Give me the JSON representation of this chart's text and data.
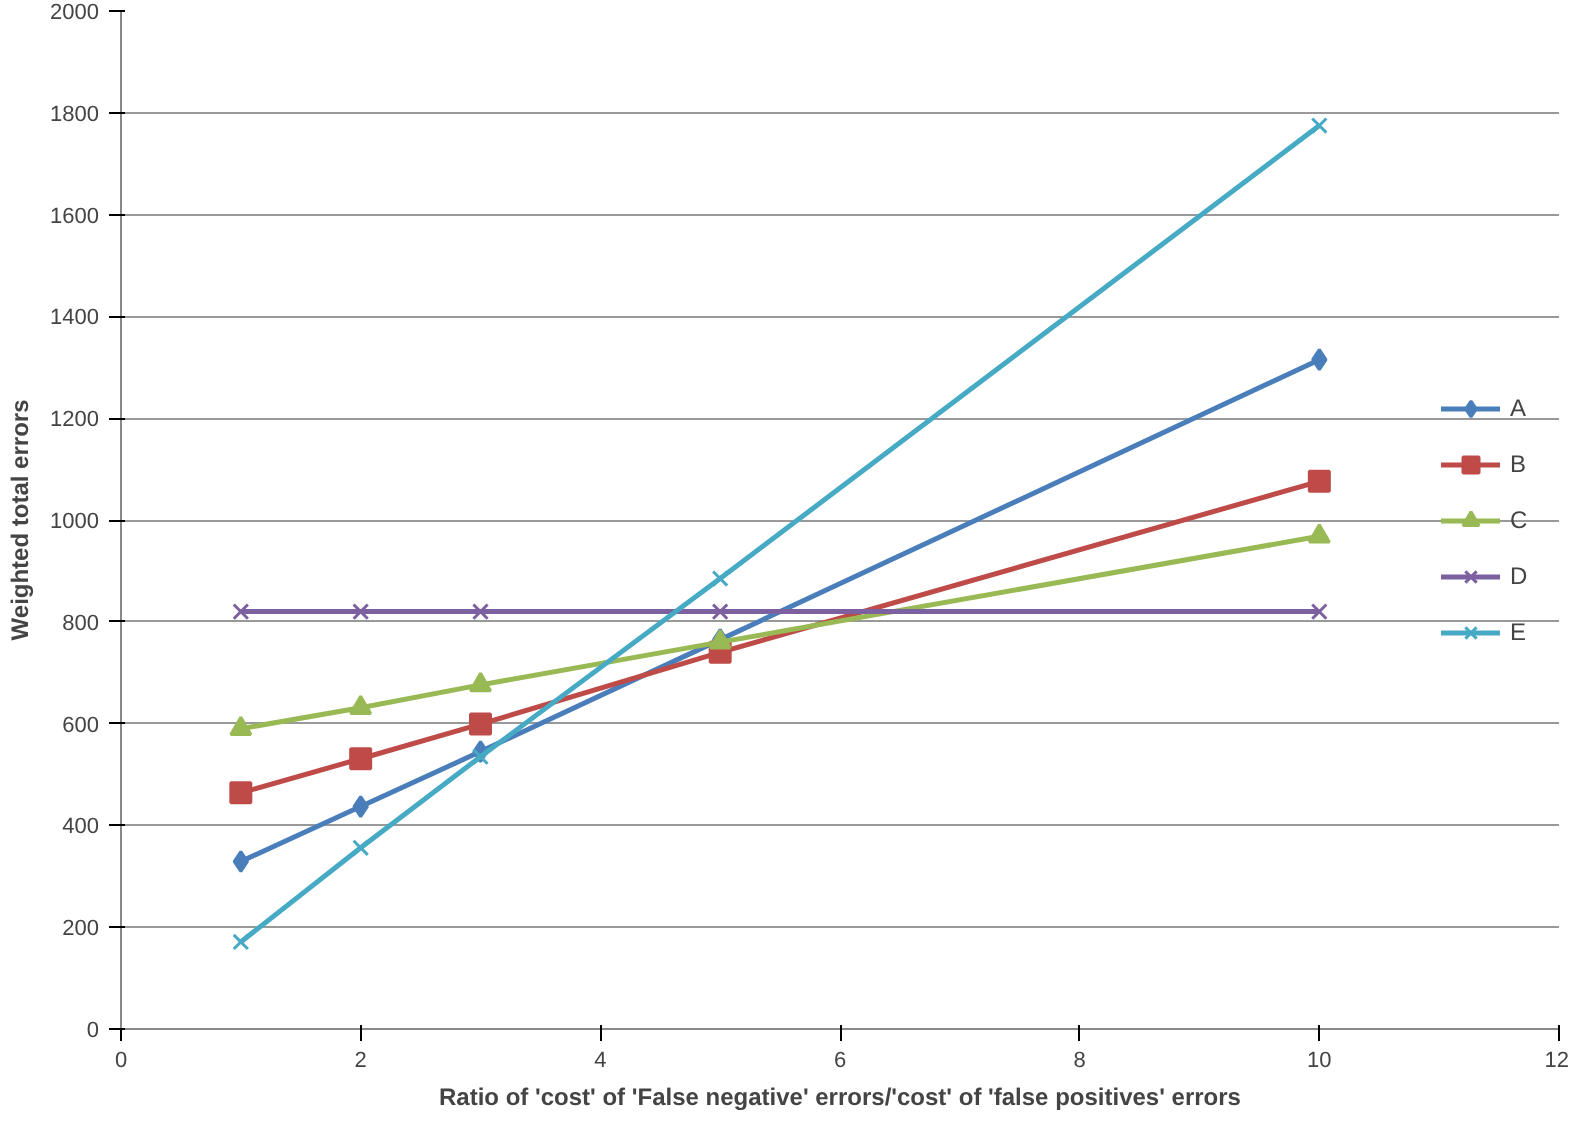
{
  "chart_data": {
    "type": "line",
    "xlabel": "Ratio of 'cost' of 'False negative' errors/'cost' of 'false positives' errors",
    "ylabel": "Weighted total errors",
    "x": [
      1,
      2,
      3,
      5,
      10
    ],
    "series": [
      {
        "name": "A",
        "color": "#4a7ebb",
        "marker": "diamond",
        "values": [
          329,
          437,
          545,
          765,
          1315
        ]
      },
      {
        "name": "B",
        "color": "#be4b48",
        "marker": "square",
        "values": [
          464,
          531,
          599,
          740,
          1076
        ]
      },
      {
        "name": "C",
        "color": "#98b954",
        "marker": "triangle",
        "values": [
          590,
          631,
          676,
          760,
          968
        ]
      },
      {
        "name": "D",
        "color": "#7d60a0",
        "marker": "cross",
        "values": [
          820,
          820,
          820,
          820,
          820
        ]
      },
      {
        "name": "E",
        "color": "#46aac5",
        "marker": "cross",
        "values": [
          171,
          356,
          535,
          885,
          1775
        ]
      }
    ],
    "xlim": [
      0,
      12
    ],
    "xticks": [
      0,
      2,
      4,
      6,
      8,
      10,
      12
    ],
    "ylim": [
      0,
      2000
    ],
    "yticks": [
      0,
      200,
      400,
      600,
      800,
      1000,
      1200,
      1400,
      1600,
      1800,
      2000
    ],
    "grid": "y",
    "legend": "right"
  }
}
